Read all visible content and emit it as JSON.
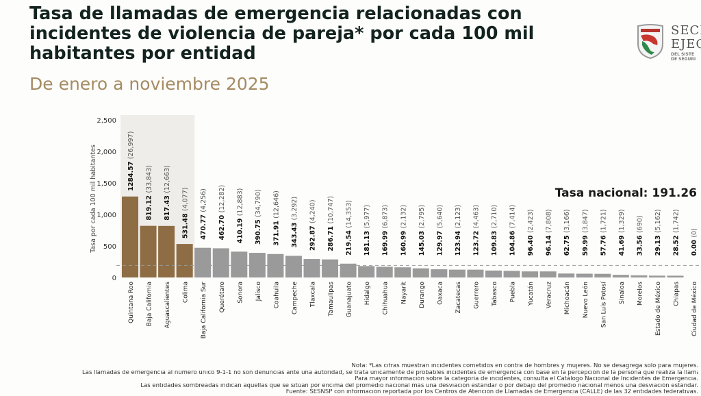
{
  "header": {
    "title_lines": [
      "Tasa de llamadas de emergencia relacionadas con",
      "incidentes de violencia de pareja* por cada 100 mil",
      "habitantes por entidad"
    ],
    "subtitle": "De enero a noviembre 2025"
  },
  "logo": {
    "line1": "SECR",
    "line2": "EJEC",
    "line3": "DEL SISTE",
    "line4": "DE SEGURI"
  },
  "colors": {
    "highlight": "#8e6c44",
    "normal": "#9a9a9a",
    "shade": "#efede9",
    "title": "#13231f",
    "subtitle": "#a58b62"
  },
  "chart_data": {
    "type": "bar",
    "title": "Tasa de llamadas de emergencia relacionadas con incidentes de violencia de pareja* por cada 100 mil habitantes por entidad",
    "subtitle": "De enero a noviembre 2025",
    "xlabel": "",
    "ylabel": "Tasa por cada 100 mil habitantes",
    "ylim": [
      0,
      2500
    ],
    "yticks": [
      0,
      500,
      1000,
      1500,
      2000,
      2500
    ],
    "ytick_labels": [
      "0",
      "500",
      "1,000",
      "1,500",
      "2,000",
      "2,500"
    ],
    "grid": false,
    "reference_line": {
      "label": "Tasa nacional: 191.26",
      "value": 191.26,
      "style": "dashed"
    },
    "categories": [
      "Quintana Roo",
      "Baja California",
      "Aguascalientes",
      "Colima",
      "Baja California Sur",
      "Querétaro",
      "Sonora",
      "Jalisco",
      "Coahuila",
      "Campeche",
      "Tlaxcala",
      "Tamaulipas",
      "Guanajuato",
      "Hidalgo",
      "Chihuahua",
      "Nayarit",
      "Durango",
      "Oaxaca",
      "Zacatecas",
      "Guerrero",
      "Tabasco",
      "Puebla",
      "Yucatán",
      "Veracruz",
      "Michoacán",
      "Nuevo León",
      "San Luis Potosí",
      "Sinaloa",
      "Morelos",
      "Estado de México",
      "Chiapas",
      "Ciudad de México"
    ],
    "values": [
      1284.57,
      819.12,
      817.43,
      531.48,
      470.77,
      462.7,
      410.19,
      390.75,
      371.91,
      343.43,
      292.87,
      286.71,
      219.54,
      181.13,
      169.99,
      160.99,
      145.03,
      129.97,
      123.94,
      123.72,
      109.83,
      104.86,
      96.4,
      96.14,
      62.75,
      59.99,
      57.76,
      41.69,
      33.56,
      29.13,
      28.52,
      0.0
    ],
    "value_labels": [
      "1284.57",
      "819.12",
      "817.43",
      "531.48",
      "470.77",
      "462.70",
      "410.19",
      "390.75",
      "371.91",
      "343.43",
      "292.87",
      "286.71",
      "219.54",
      "181.13",
      "169.99",
      "160.99",
      "145.03",
      "129.97",
      "123.94",
      "123.72",
      "109.83",
      "104.86",
      "96.40",
      "96.14",
      "62.75",
      "59.99",
      "57.76",
      "41.69",
      "33.56",
      "29.13",
      "28.52",
      "0.00"
    ],
    "counts": [
      "(26,997)",
      "(33,843)",
      "(12,663)",
      "(4,077)",
      "(4,256)",
      "(12,282)",
      "(12,883)",
      "(34,790)",
      "(12,646)",
      "(3,292)",
      "(4,240)",
      "(10,747)",
      "(14,353)",
      "(5,977)",
      "(6,873)",
      "(2,132)",
      "(2,795)",
      "(5,640)",
      "(2,123)",
      "(4,463)",
      "(2,710)",
      "(7,414)",
      "(2,423)",
      "(7,808)",
      "(3,166)",
      "(3,847)",
      "(1,721)",
      "(1,329)",
      "(690)",
      "(5,162)",
      "(1,742)",
      "(0)"
    ],
    "highlighted": [
      true,
      true,
      true,
      true,
      false,
      false,
      false,
      false,
      false,
      false,
      false,
      false,
      false,
      false,
      false,
      false,
      false,
      false,
      false,
      false,
      false,
      false,
      false,
      false,
      false,
      false,
      false,
      false,
      false,
      false,
      false,
      false
    ],
    "shaded_region_categories": [
      "Quintana Roo",
      "Baja California",
      "Aguascalientes",
      "Colima"
    ]
  },
  "notes": [
    "Nota: *Las cifras muestran incidentes cometidos en contra de hombres y mujeres. No se desagrega solo para mujeres.",
    "Las llamadas de emergencia al número único 9-1-1 no son denuncias ante una autoridad, se trata únicamente de probables incidentes de emergencia con base en la percepción de la persona que realiza la llamada.",
    "Para mayor información sobre la categoría de incidentes, consulta el Catálogo Nacional de Incidentes de Emergencia.",
    "Las entidades sombreadas indican aquellas que se sitúan por encima del promedio nacional más una desviación estándar o por debajo del promedio nacional menos una desviación estándar.",
    "Fuente: SESNSP con información reportada por los Centros de Atención de Llamadas de Emergencia (CALLE) de las 32 entidades federativas."
  ]
}
